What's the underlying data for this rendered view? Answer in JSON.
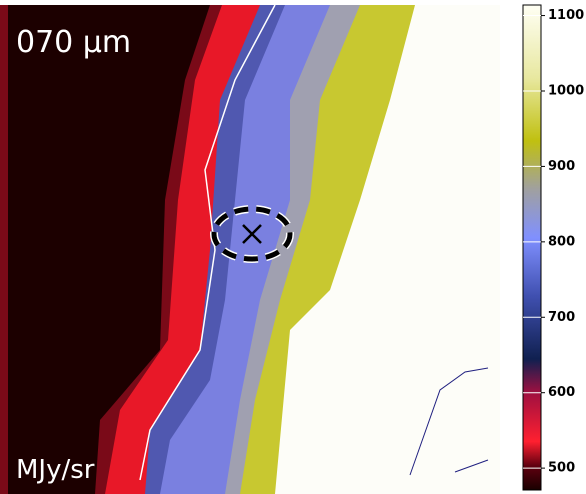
{
  "chart_data": {
    "type": "image",
    "title": "070 μm",
    "colorbar_label": "MJy/sr",
    "clim": [
      471,
      1114
    ],
    "cticks": [
      500,
      600,
      700,
      800,
      900,
      1000,
      1100
    ]
  }
}
